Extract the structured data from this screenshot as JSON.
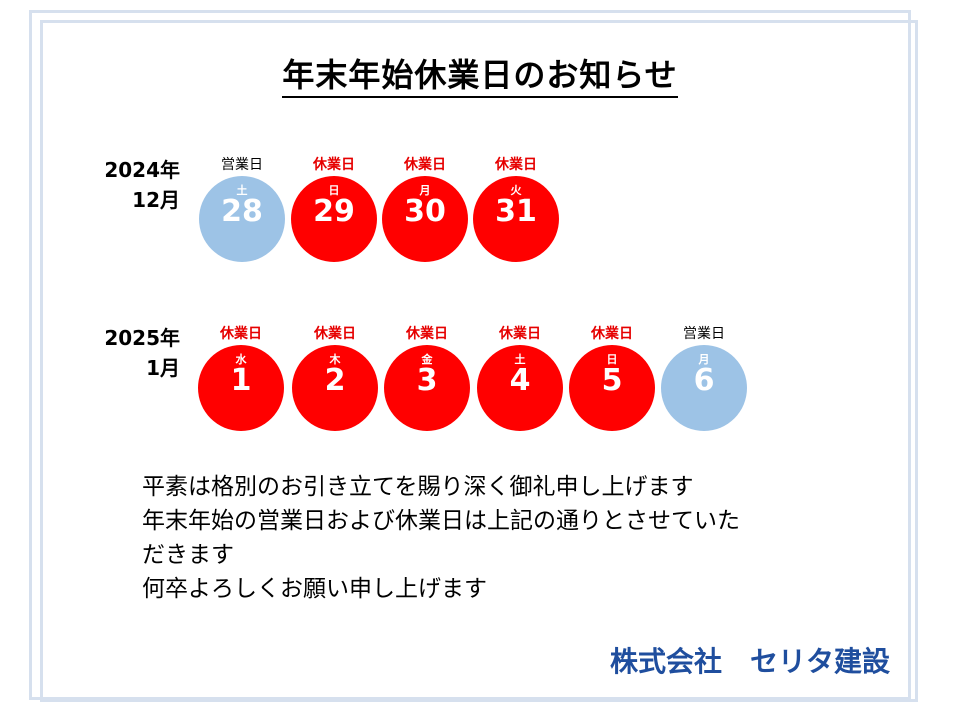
{
  "title": "年末年始休業日のお知らせ",
  "colors": {
    "closed": "#ff0000",
    "open": "#9dc3e6",
    "company": "#1f4e9e",
    "frame": "#d6e0ee"
  },
  "months": [
    {
      "year": "2024年",
      "month": "12月",
      "days": [
        {
          "status": "営業日",
          "weekday": "土",
          "day": "28",
          "type": "open"
        },
        {
          "status": "休業日",
          "weekday": "日",
          "day": "29",
          "type": "closed"
        },
        {
          "status": "休業日",
          "weekday": "月",
          "day": "30",
          "type": "closed"
        },
        {
          "status": "休業日",
          "weekday": "火",
          "day": "31",
          "type": "closed"
        }
      ]
    },
    {
      "year": "2025年",
      "month": "1月",
      "days": [
        {
          "status": "休業日",
          "weekday": "水",
          "day": "1",
          "type": "closed"
        },
        {
          "status": "休業日",
          "weekday": "木",
          "day": "2",
          "type": "closed"
        },
        {
          "status": "休業日",
          "weekday": "金",
          "day": "3",
          "type": "closed"
        },
        {
          "status": "休業日",
          "weekday": "土",
          "day": "4",
          "type": "closed"
        },
        {
          "status": "休業日",
          "weekday": "日",
          "day": "5",
          "type": "closed"
        },
        {
          "status": "営業日",
          "weekday": "月",
          "day": "6",
          "type": "open"
        }
      ]
    }
  ],
  "message": {
    "line1": "平素は格別のお引き立てを賜り深く御礼申し上げます",
    "line2": "年末年始の営業日および休業日は上記の通りとさせていた",
    "line3": "だきます",
    "line4": "何卒よろしくお願い申し上げます"
  },
  "company": "株式会社　セリタ建設"
}
